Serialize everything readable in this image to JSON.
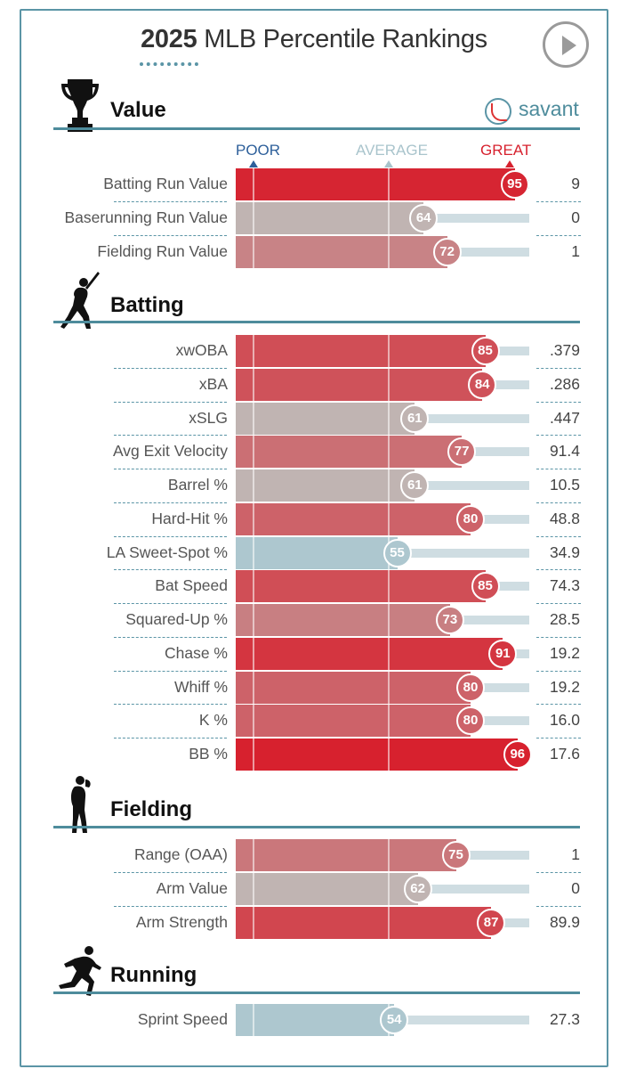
{
  "header": {
    "title_year": "2025",
    "title_rest": "MLB Percentile Rankings",
    "brand": "savant"
  },
  "axis": {
    "poor": "POOR",
    "average": "AVERAGE",
    "great": "GREAT"
  },
  "colors": {
    "accent": "#4e8c9c",
    "great": "#d7212e",
    "average": "#c0b4b2",
    "poor": "#adc7cf",
    "track": "#cfdde2"
  },
  "chart_data": {
    "type": "bar",
    "orientation": "horizontal",
    "xlim": [
      0,
      100
    ],
    "sections": [
      {
        "name": "Value",
        "icon": "trophy-icon",
        "rows": [
          {
            "label": "Batting Run Value",
            "percentile": 95,
            "value": "9"
          },
          {
            "label": "Baserunning Run Value",
            "percentile": 64,
            "value": "0"
          },
          {
            "label": "Fielding Run Value",
            "percentile": 72,
            "value": "1"
          }
        ]
      },
      {
        "name": "Batting",
        "icon": "batter-icon",
        "rows": [
          {
            "label": "xwOBA",
            "percentile": 85,
            "value": ".379"
          },
          {
            "label": "xBA",
            "percentile": 84,
            "value": ".286"
          },
          {
            "label": "xSLG",
            "percentile": 61,
            "value": ".447"
          },
          {
            "label": "Avg Exit Velocity",
            "percentile": 77,
            "value": "91.4"
          },
          {
            "label": "Barrel %",
            "percentile": 61,
            "value": "10.5"
          },
          {
            "label": "Hard-Hit %",
            "percentile": 80,
            "value": "48.8"
          },
          {
            "label": "LA Sweet-Spot %",
            "percentile": 55,
            "value": "34.9"
          },
          {
            "label": "Bat Speed",
            "percentile": 85,
            "value": "74.3"
          },
          {
            "label": "Squared-Up %",
            "percentile": 73,
            "value": "28.5"
          },
          {
            "label": "Chase %",
            "percentile": 91,
            "value": "19.2"
          },
          {
            "label": "Whiff %",
            "percentile": 80,
            "value": "19.2"
          },
          {
            "label": "K %",
            "percentile": 80,
            "value": "16.0"
          },
          {
            "label": "BB %",
            "percentile": 96,
            "value": "17.6"
          }
        ]
      },
      {
        "name": "Fielding",
        "icon": "fielder-icon",
        "rows": [
          {
            "label": "Range (OAA)",
            "percentile": 75,
            "value": "1"
          },
          {
            "label": "Arm Value",
            "percentile": 62,
            "value": "0"
          },
          {
            "label": "Arm Strength",
            "percentile": 87,
            "value": "89.9"
          }
        ]
      },
      {
        "name": "Running",
        "icon": "runner-icon",
        "rows": [
          {
            "label": "Sprint Speed",
            "percentile": 54,
            "value": "27.3"
          }
        ]
      }
    ]
  }
}
